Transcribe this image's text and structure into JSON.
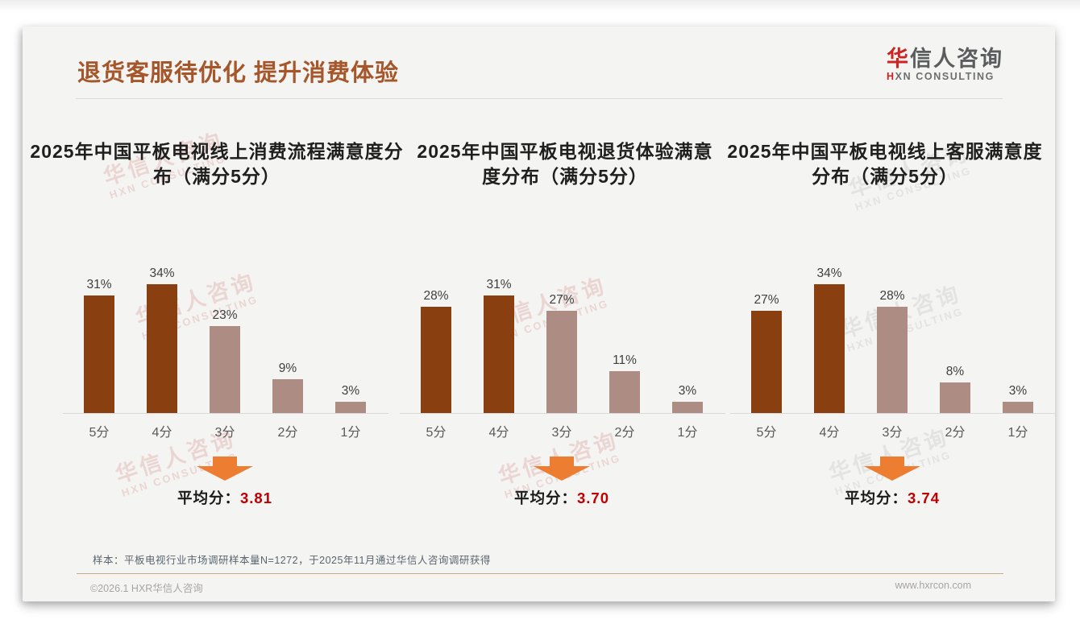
{
  "page": {
    "header": {
      "title": "退货客服待优化 提升消费体验",
      "logo_zh_red": "华",
      "logo_zh_rest": "信人咨询",
      "logo_en_red": "H",
      "logo_en_rest": "XN CONSULTING"
    },
    "watermark": {
      "line1": "华信人咨询",
      "line2": "HXN CONSULTING"
    },
    "footnote": "样本：平板电视行业市场调研样本量N=1272，于2025年11月通过华信人咨询调研获得",
    "footer": {
      "left": "©2026.1 HXR华信人咨询",
      "right": "www.hxrcon.com"
    }
  },
  "colors": {
    "card_bg": "#F4F4F2",
    "accent_title": "#A5562B",
    "logo_red": "#CC2420",
    "logo_gray": "#5B5C5E",
    "divider_gray": "#DBDBDB",
    "chart_title_dark": "#1F1F1F",
    "bar_dark": "#8A3F10",
    "bar_light": "#AD8C84",
    "axis_gray": "#D9D9D9",
    "label_dark": "#3F3F3F",
    "cat_gray": "#595959",
    "arrow_orange": "#ED7D31",
    "avg_red": "#C00000",
    "footnote_text": "#5B646D",
    "divider_tan": "#C9A885",
    "footer_gray": "#A8A5A2"
  },
  "chart_data": [
    {
      "type": "bar",
      "title": "2025年中国平板电视线上消费流程满意度分布（满分5分）",
      "categories": [
        "5分",
        "4分",
        "3分",
        "2分",
        "1分"
      ],
      "values": [
        31,
        34,
        23,
        9,
        3
      ],
      "value_labels": [
        "31%",
        "34%",
        "23%",
        "9%",
        "3%"
      ],
      "unit": "%",
      "ylim": [
        0,
        40
      ],
      "grid": false,
      "average_label": "平均分：",
      "average_value": "3.81"
    },
    {
      "type": "bar",
      "title": "2025年中国平板电视退货体验满意度分布（满分5分）",
      "categories": [
        "5分",
        "4分",
        "3分",
        "2分",
        "1分"
      ],
      "values": [
        28,
        31,
        27,
        11,
        3
      ],
      "value_labels": [
        "28%",
        "31%",
        "27%",
        "11%",
        "3%"
      ],
      "unit": "%",
      "ylim": [
        0,
        40
      ],
      "grid": false,
      "average_label": "平均分：",
      "average_value": "3.70"
    },
    {
      "type": "bar",
      "title": "2025年中国平板电视线上客服满意度分布（满分5分）",
      "categories": [
        "5分",
        "4分",
        "3分",
        "2分",
        "1分"
      ],
      "values": [
        27,
        34,
        28,
        8,
        3
      ],
      "value_labels": [
        "27%",
        "34%",
        "28%",
        "8%",
        "3%"
      ],
      "unit": "%",
      "ylim": [
        0,
        40
      ],
      "grid": false,
      "average_label": "平均分：",
      "average_value": "3.74"
    }
  ]
}
